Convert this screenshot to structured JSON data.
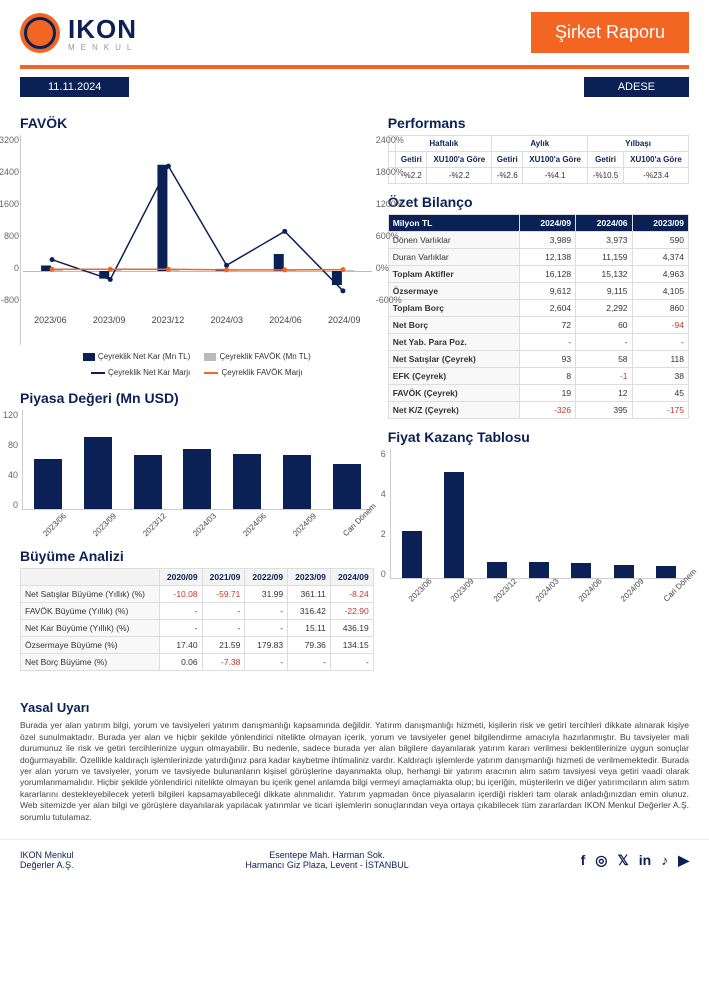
{
  "brand": {
    "name": "IKON",
    "sub": "MENKUL"
  },
  "report_title": "Şirket Raporu",
  "date": "11.11.2024",
  "ticker": "ADESE",
  "colors": {
    "navy": "#0b2156",
    "orange": "#f26522",
    "grey": "#bbbbbb",
    "neg": "#c0392b"
  },
  "favok": {
    "title": "FAVÖK",
    "categories": [
      "2023/06",
      "2023/09",
      "2023/12",
      "2024/03",
      "2024/06",
      "2024/09"
    ],
    "netkar_bar": [
      130,
      -180,
      2500,
      50,
      400,
      -330
    ],
    "favok_bar": [
      40,
      50,
      20,
      10,
      15,
      20
    ],
    "bar_colors": {
      "netkar": "#0b2156",
      "favok": "#bbbbbb"
    },
    "netkar_line": [
      200,
      -150,
      1850,
      100,
      700,
      -350
    ],
    "favok_line": [
      30,
      30,
      30,
      20,
      20,
      25
    ],
    "line_colors": {
      "netkar": "#0b2156",
      "favok": "#f26522"
    },
    "ylim_left": [
      -800,
      3200
    ],
    "ytick_left": [
      3200,
      2400,
      1600,
      800,
      0,
      -800
    ],
    "ylim_right": [
      -600,
      2400
    ],
    "ytick_right": [
      "2400%",
      "1800%",
      "1200%",
      "600%",
      "0%",
      "-600%"
    ],
    "legend": [
      "Çeyreklik Net Kar (Mn TL)",
      "Çeyreklik FAVÖK (Mn TL)",
      "Çeyreklik Net Kar Marjı",
      "Çeyreklik FAVÖK Marjı"
    ]
  },
  "market_value": {
    "title": "Piyasa Değeri (Mn USD)",
    "categories": [
      "2023/06",
      "2023/09",
      "2023/12",
      "2024/03",
      "2024/06",
      "2024/09",
      "Cari Dönem"
    ],
    "values": [
      60,
      86,
      64,
      72,
      66,
      64,
      54
    ],
    "bar_color": "#0b2156",
    "ylim": [
      0,
      120
    ],
    "ytick": [
      120,
      80,
      40,
      0
    ]
  },
  "growth": {
    "title": "Büyüme Analizi",
    "columns": [
      "",
      "2020/09",
      "2021/09",
      "2022/09",
      "2023/09",
      "2024/09"
    ],
    "rows": [
      {
        "label": "Net Satışlar Büyüme (Yıllık) (%)",
        "v": [
          "-10.08",
          "-59.71",
          "31.99",
          "361.11",
          "-8.24"
        ],
        "neg": [
          true,
          true,
          false,
          false,
          true
        ]
      },
      {
        "label": "FAVÖK Büyüme (Yıllık) (%)",
        "v": [
          "-",
          "-",
          "-",
          "316.42",
          "-22.90"
        ],
        "neg": [
          false,
          false,
          false,
          false,
          true
        ]
      },
      {
        "label": "Net Kar Büyüme (Yıllık) (%)",
        "v": [
          "-",
          "-",
          "-",
          "15.11",
          "436.19"
        ],
        "neg": [
          false,
          false,
          false,
          false,
          false
        ]
      },
      {
        "label": "Özsermaye Büyüme (%)",
        "v": [
          "17.40",
          "21.59",
          "179.83",
          "79.36",
          "134.15"
        ],
        "neg": [
          false,
          false,
          false,
          false,
          false
        ]
      },
      {
        "label": "Net Borç Büyüme (%)",
        "v": [
          "0.06",
          "-7.38",
          "-",
          "-",
          "-"
        ],
        "neg": [
          false,
          true,
          false,
          false,
          false
        ]
      }
    ]
  },
  "performance": {
    "title": "Performans",
    "groups": [
      "Haftalık",
      "Aylık",
      "Yılbaşı"
    ],
    "subcols": [
      "Getiri",
      "XU100'a Göre"
    ],
    "values": [
      "-%2.2",
      "-%2.2",
      "-%2.6",
      "-%4.1",
      "-%10.5",
      "-%23.4"
    ]
  },
  "balance": {
    "title": "Özet Bilanço",
    "header": [
      "Milyon TL",
      "2024/09",
      "2024/06",
      "2023/09"
    ],
    "rows": [
      {
        "l": "Dönen Varlıklar",
        "v": [
          "3,989",
          "3,973",
          "590"
        ]
      },
      {
        "l": "Duran Varlıklar",
        "v": [
          "12,138",
          "11,159",
          "4,374"
        ]
      },
      {
        "l": "Toplam Aktifler",
        "v": [
          "16,128",
          "15,132",
          "4,963"
        ],
        "bold": true
      },
      {
        "l": "Özsermaye",
        "v": [
          "9,612",
          "9,115",
          "4,105"
        ],
        "bold": true
      },
      {
        "l": "Toplam Borç",
        "v": [
          "2,604",
          "2,292",
          "860"
        ],
        "bold": true
      },
      {
        "l": "Net Borç",
        "v": [
          "72",
          "60",
          "-94"
        ],
        "neg": [
          false,
          false,
          true
        ],
        "bold": true
      },
      {
        "l": "Net Yab. Para Poz.",
        "v": [
          "-",
          "-",
          "-"
        ],
        "bold": true
      },
      {
        "l": "Net Satışlar (Çeyrek)",
        "v": [
          "93",
          "58",
          "118"
        ],
        "bold": true
      },
      {
        "l": "EFK (Çeyrek)",
        "v": [
          "8",
          "-1",
          "38"
        ],
        "neg": [
          false,
          true,
          false
        ],
        "bold": true
      },
      {
        "l": "FAVÖK (Çeyrek)",
        "v": [
          "19",
          "12",
          "45"
        ],
        "bold": true
      },
      {
        "l": "Net K/Z (Çeyrek)",
        "v": [
          "-326",
          "395",
          "-175"
        ],
        "neg": [
          true,
          false,
          true
        ],
        "bold": true
      }
    ]
  },
  "pe": {
    "title": "Fiyat Kazanç Tablosu",
    "categories": [
      "2023/06",
      "2023/09",
      "2023/12",
      "2024/03",
      "2024/06",
      "2024/09",
      "Cari Dönem"
    ],
    "values": [
      2.15,
      4.9,
      0.75,
      0.72,
      0.68,
      0.6,
      0.55
    ],
    "bar_color": "#0b2156",
    "ylim": [
      0,
      6
    ],
    "ytick": [
      6,
      4,
      2,
      0
    ]
  },
  "legal": {
    "title": "Yasal Uyarı",
    "text": "Burada yer alan yatırım bilgi, yorum ve tavsiyeleri yatırım danışmanlığı kapsamında değildir. Yatırım danışmanlığı hizmeti, kişilerin risk ve getiri tercihleri dikkate alınarak kişiye özel sunulmaktadır. Burada yer alan ve hiçbir şekilde yönlendirici nitelikte olmayan içerik, yorum ve tavsiyeler genel bilgilendirme amacıyla hazırlanmıştır. Bu tavsiyeler mali durumunuz ile risk ve getiri tercihlerinize uygun olmayabilir. Bu nedenle, sadece burada yer alan bilgilere dayanılarak yatırım kararı verilmesi beklentilerinize uygun sonuçlar doğurmayabilir. Özellikle kaldıraçlı işlemlerinizde yatırdığınız para kadar kaybetme ihtimaliniz vardır. Kaldıraçlı işlemlerde yatırım danışmanlığı hizmeti de verilmemektedir. Burada yer alan yorum ve tavsiyeler, yorum ve tavsiyede bulunanların kişisel görüşlerine dayanmakta olup, herhangi bir yatırım aracının alım satım tavsiyesi veya getiri vaadi olarak yorumlanmamalıdır. Hiçbir şekilde yönlendirici nitelikte olmayan bu içerik genel anlamda bilgi vermeyi amaçlamakta olup; bu içeriğin, müşterilerin ve diğer yatırımcıların alım satım kararlarını destekleyebilecek yeterli bilgileri kapsamayabileceği dikkate alınmalıdır. Yatırım yapmadan önce piyasaların içerdiği riskleri tam olarak anladığınızdan emin olunuz. Web sitemizde yer alan bilgi ve görüşlere dayanılarak yapılacak yatırımlar ve ticari işlemlerin sonuçlarından veya ortaya çıkabilecek tüm zararlardan IKON Menkul Değerler A.Ş. sorumlu tutulamaz."
  },
  "footer": {
    "left1": "IKON Menkul",
    "left2": "Değerler A.Ş.",
    "mid1": "Esentepe Mah. Harman Sok.",
    "mid2": "Harmancı Giz Plaza, Levent - İSTANBUL",
    "social": [
      "f",
      "◎",
      "𝕏",
      "in",
      "♪",
      "▶"
    ]
  }
}
